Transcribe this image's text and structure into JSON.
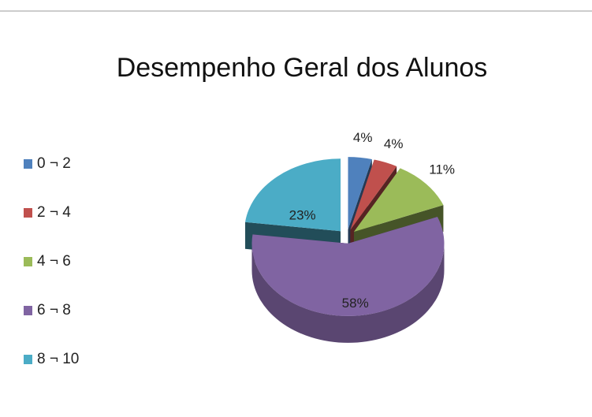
{
  "chart_data": {
    "type": "pie",
    "title": "Desempenho Geral dos Alunos",
    "categories": [
      "0 ¬ 2",
      "2 ¬ 4",
      "4 ¬ 6",
      "6 ¬ 8",
      "8 ¬ 10"
    ],
    "values": [
      4,
      4,
      11,
      58,
      23
    ],
    "value_labels": [
      "4%",
      "4%",
      "11%",
      "58%",
      "23%"
    ],
    "colors": [
      "#4f81bd",
      "#c0504d",
      "#9bbb59",
      "#8064a2",
      "#4bacc6"
    ],
    "legend": "left"
  }
}
